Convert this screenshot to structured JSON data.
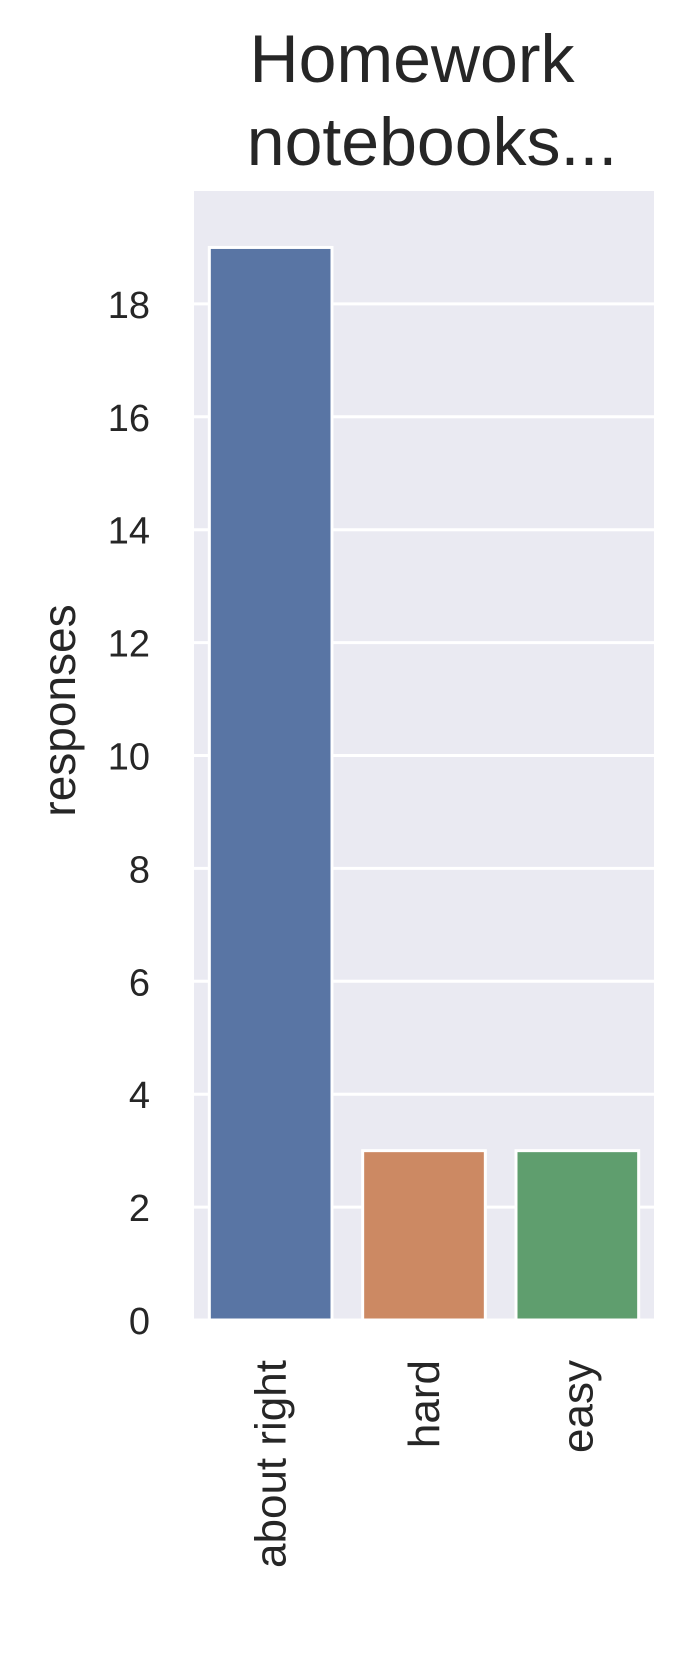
{
  "chart_data": {
    "type": "bar",
    "title_lines": [
      "Homework",
      "notebooks..."
    ],
    "xlabel": "",
    "ylabel": "responses",
    "categories": [
      "about right",
      "hard",
      "easy"
    ],
    "values": [
      19,
      3,
      3
    ],
    "ylim": [
      0,
      20
    ],
    "yticks": [
      0,
      2,
      4,
      6,
      8,
      10,
      12,
      14,
      16,
      18
    ],
    "grid": true,
    "colors": {
      "background": "#eaeaf2",
      "grid": "#ffffff",
      "text": "#262626",
      "bars": [
        "#5975a4",
        "#cc8963",
        "#5f9e6e"
      ]
    }
  }
}
